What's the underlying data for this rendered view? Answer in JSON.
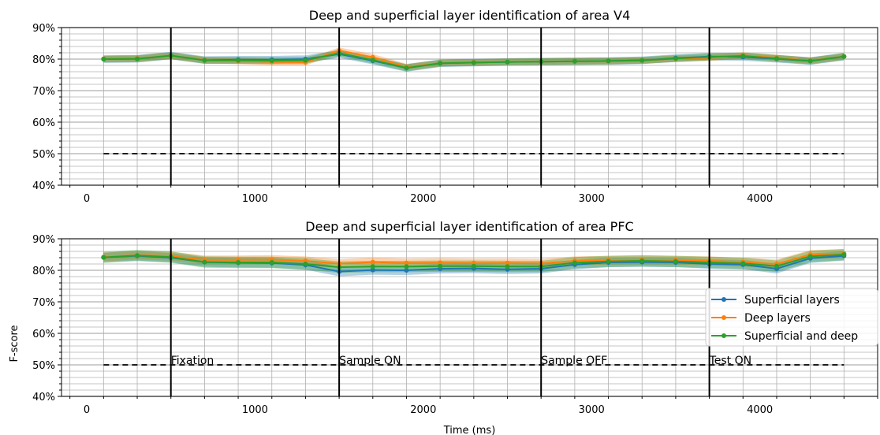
{
  "chart_data": [
    {
      "type": "line",
      "title": "Deep and superficial layer identification of area V4",
      "xlabel": "",
      "ylabel": "",
      "xlim": [
        -150,
        4700
      ],
      "ylim": [
        0.4,
        0.9
      ],
      "x_ticks": [
        0,
        1000,
        2000,
        3000,
        4000
      ],
      "x_tick_labels": [
        "0",
        "1000",
        "2000",
        "3000",
        "4000"
      ],
      "y_ticks": [
        0.4,
        0.5,
        0.6,
        0.7,
        0.8,
        0.9
      ],
      "y_tick_labels": [
        "40%",
        "50%",
        "60%",
        "70%",
        "80%",
        "90%"
      ],
      "grid": true,
      "x": [
        100,
        300,
        500,
        700,
        900,
        1100,
        1300,
        1500,
        1700,
        1900,
        2100,
        2300,
        2500,
        2700,
        2900,
        3100,
        3300,
        3500,
        3700,
        3900,
        4100,
        4300,
        4500
      ],
      "x_positions": [
        100,
        307,
        514,
        725,
        935,
        1145,
        1360,
        1570,
        1780,
        1990,
        2200,
        2410,
        2620,
        2830,
        3040,
        3250,
        3460,
        3670,
        3880,
        4090,
        4300,
        4510,
        4510
      ],
      "series": [
        {
          "name": "Superficial layers",
          "color": "#1f77b4",
          "values": [
            0.8,
            0.801,
            0.811,
            0.797,
            0.798,
            0.798,
            0.8,
            0.816,
            0.795,
            0.772,
            0.787,
            0.789,
            0.791,
            0.792,
            0.793,
            0.794,
            0.796,
            0.803,
            0.808,
            0.807,
            0.801,
            0.794,
            0.808
          ],
          "band": 0.012
        },
        {
          "name": "Deep layers",
          "color": "#ff7f0e",
          "values": [
            0.801,
            0.802,
            0.81,
            0.797,
            0.794,
            0.791,
            0.79,
            0.827,
            0.806,
            0.775,
            0.787,
            0.79,
            0.792,
            0.792,
            0.793,
            0.793,
            0.796,
            0.801,
            0.804,
            0.812,
            0.804,
            0.795,
            0.808
          ],
          "band": 0.01
        },
        {
          "name": "Superficial and deep",
          "color": "#2ca02c",
          "values": [
            0.8,
            0.801,
            0.811,
            0.796,
            0.796,
            0.795,
            0.796,
            0.819,
            0.797,
            0.772,
            0.787,
            0.789,
            0.791,
            0.792,
            0.793,
            0.794,
            0.796,
            0.802,
            0.807,
            0.81,
            0.802,
            0.794,
            0.808
          ],
          "band": 0.011
        }
      ],
      "chance_level": 0.5,
      "event_lines": [
        500,
        1500,
        2700,
        3700
      ]
    },
    {
      "type": "line",
      "title": "Deep and superficial layer identification of area PFC",
      "xlabel": "Time (ms)",
      "ylabel": "F-score",
      "xlim": [
        -150,
        4700
      ],
      "ylim": [
        0.4,
        0.9
      ],
      "x_ticks": [
        0,
        1000,
        2000,
        3000,
        4000
      ],
      "x_tick_labels": [
        "0",
        "1000",
        "2000",
        "3000",
        "4000"
      ],
      "y_ticks": [
        0.4,
        0.5,
        0.6,
        0.7,
        0.8,
        0.9
      ],
      "y_tick_labels": [
        "40%",
        "50%",
        "60%",
        "70%",
        "80%",
        "90%"
      ],
      "grid": true,
      "legend_position": "right",
      "x": [
        100,
        300,
        500,
        700,
        900,
        1100,
        1300,
        1500,
        1700,
        1900,
        2100,
        2300,
        2500,
        2700,
        2900,
        3100,
        3300,
        3500,
        3700,
        3900,
        4100,
        4300,
        4500
      ],
      "series": [
        {
          "name": "Superficial layers",
          "color": "#1f77b4",
          "values": [
            0.841,
            0.846,
            0.84,
            0.826,
            0.824,
            0.823,
            0.817,
            0.796,
            0.801,
            0.8,
            0.805,
            0.806,
            0.803,
            0.805,
            0.818,
            0.825,
            0.826,
            0.825,
            0.82,
            0.818,
            0.805,
            0.838,
            0.846
          ],
          "band": 0.015
        },
        {
          "name": "Deep layers",
          "color": "#ff7f0e",
          "values": [
            0.842,
            0.848,
            0.845,
            0.833,
            0.833,
            0.834,
            0.83,
            0.821,
            0.826,
            0.823,
            0.824,
            0.823,
            0.823,
            0.822,
            0.83,
            0.832,
            0.833,
            0.832,
            0.83,
            0.826,
            0.82,
            0.85,
            0.853
          ],
          "band": 0.014
        },
        {
          "name": "Superficial and deep",
          "color": "#2ca02c",
          "values": [
            0.841,
            0.847,
            0.842,
            0.826,
            0.825,
            0.825,
            0.82,
            0.81,
            0.812,
            0.812,
            0.813,
            0.813,
            0.812,
            0.812,
            0.824,
            0.828,
            0.83,
            0.828,
            0.825,
            0.822,
            0.813,
            0.844,
            0.85
          ],
          "band": 0.018
        }
      ],
      "chance_level": 0.5,
      "event_lines": [
        500,
        1500,
        2700,
        3700
      ],
      "annotations": [
        {
          "x": 500,
          "y": 0.51,
          "text": "Fixation"
        },
        {
          "x": 1500,
          "y": 0.51,
          "text": "Sample ON"
        },
        {
          "x": 2700,
          "y": 0.51,
          "text": "Sample OFF"
        },
        {
          "x": 3700,
          "y": 0.51,
          "text": "Test ON"
        }
      ]
    }
  ]
}
